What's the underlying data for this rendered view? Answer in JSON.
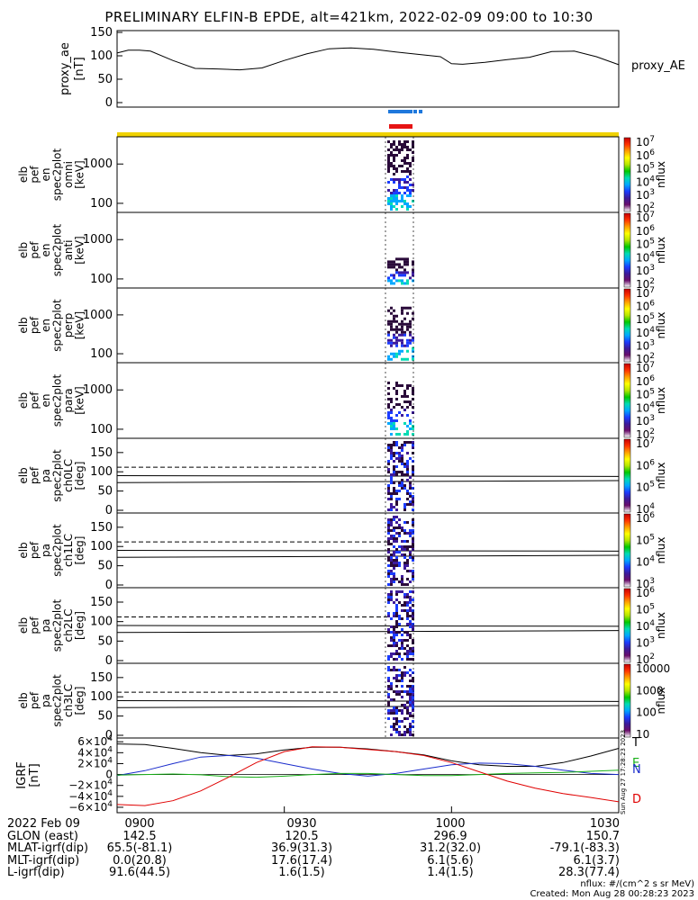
{
  "title": "PRELIMINARY ELFIN-B EPDE, alt=421km, 2022-02-09 09:00 to 10:30",
  "colors": {
    "line": "#000000",
    "bar_blue": "#1e78dc",
    "bar_red": "#e61414",
    "bar_yellow": "#f0d200",
    "B_red": "#e00000",
    "B_green": "#18b018",
    "B_blue": "#1a2ccc"
  },
  "panels": [
    {
      "id": "proxy_ae",
      "ylabel": [
        "proxy_ae",
        "[nT]"
      ],
      "right_label": "proxy_AE",
      "ticks": [
        "150",
        "100",
        "50",
        "0"
      ]
    },
    {
      "id": "omni",
      "ylabel": [
        "elb",
        "pef",
        "en",
        "spec2plot",
        "omni",
        "[keV]"
      ],
      "ticks": [
        "1000",
        "100"
      ],
      "cb_ticks": [
        "10^7",
        "10^6",
        "10^5",
        "10^4",
        "10^3",
        "10^2"
      ],
      "cb_label": "nflux"
    },
    {
      "id": "anti",
      "ylabel": [
        "elb",
        "pef",
        "en",
        "spec2plot",
        "anti",
        "[keV]"
      ],
      "ticks": [
        "1000",
        "100"
      ],
      "cb_ticks": [
        "10^7",
        "10^6",
        "10^5",
        "10^4",
        "10^3",
        "10^2"
      ],
      "cb_label": "nflux"
    },
    {
      "id": "perp",
      "ylabel": [
        "elb",
        "pef",
        "en",
        "spec2plot",
        "perp",
        "[keV]"
      ],
      "ticks": [
        "1000",
        "100"
      ],
      "cb_ticks": [
        "10^7",
        "10^6",
        "10^5",
        "10^4",
        "10^3",
        "10^2"
      ],
      "cb_label": "nflux"
    },
    {
      "id": "para",
      "ylabel": [
        "elb",
        "pef",
        "en",
        "spec2plot",
        "para",
        "[keV]"
      ],
      "ticks": [
        "1000",
        "100"
      ],
      "cb_ticks": [
        "10^7",
        "10^6",
        "10^5",
        "10^4",
        "10^3",
        "10^2"
      ],
      "cb_label": "nflux"
    },
    {
      "id": "ch0LC",
      "ylabel": [
        "elb",
        "pef",
        "pa",
        "spec2plot",
        "ch0LC",
        "[deg]"
      ],
      "ticks": [
        "150",
        "100",
        "50",
        "0"
      ],
      "cb_ticks": [
        "10^7",
        "10^6",
        "10^5",
        "10^4"
      ],
      "cb_label": "nflux"
    },
    {
      "id": "ch1LC",
      "ylabel": [
        "elb",
        "pef",
        "pa",
        "spec2plot",
        "ch1LC",
        "[deg]"
      ],
      "ticks": [
        "150",
        "100",
        "50",
        "0"
      ],
      "cb_ticks": [
        "10^6",
        "10^5",
        "10^4",
        "10^3"
      ],
      "cb_label": "nflux"
    },
    {
      "id": "ch2LC",
      "ylabel": [
        "elb",
        "pef",
        "pa",
        "spec2plot",
        "ch2LC",
        "[deg]"
      ],
      "ticks": [
        "150",
        "100",
        "50",
        "0"
      ],
      "cb_ticks": [
        "10^6",
        "10^5",
        "10^4",
        "10^3",
        "10^2"
      ],
      "cb_label": "nflux"
    },
    {
      "id": "ch3LC",
      "ylabel": [
        "elb",
        "pef",
        "pa",
        "spec2plot",
        "ch3LC",
        "[deg]"
      ],
      "ticks": [
        "150",
        "100",
        "50",
        "0"
      ],
      "cb_ticks": [
        "10000",
        "1000",
        "100",
        "10"
      ],
      "cb_label": "nflux"
    },
    {
      "id": "igrf",
      "ylabel": [
        "IGRF",
        "[nT]"
      ],
      "ticks": [
        "6×10^4",
        "4×10^4",
        "2×10^4",
        "0",
        "−2×10^4",
        "−4×10^4",
        "−6×10^4"
      ],
      "right_labels": [
        "T",
        "E",
        "N",
        "D"
      ],
      "stamp": "Sun Aug 27 17:28:23 2023"
    }
  ],
  "chart_data": [
    {
      "type": "line",
      "title": "proxy_ae",
      "ylabel": "proxy_ae [nT]",
      "ylim": [
        0,
        150
      ],
      "x_unit": "UT",
      "x": [
        "09:00",
        "09:02",
        "09:04",
        "09:06",
        "09:10",
        "09:14",
        "09:18",
        "09:22",
        "09:26",
        "09:30",
        "09:34",
        "09:38",
        "09:42",
        "09:46",
        "09:50",
        "09:54",
        "09:58",
        "10:00",
        "10:02",
        "10:06",
        "10:10",
        "10:14",
        "10:18",
        "10:22",
        "10:26",
        "10:30"
      ],
      "values": [
        106,
        112,
        112,
        110,
        90,
        73,
        72,
        70,
        74,
        90,
        104,
        115,
        117,
        114,
        108,
        103,
        98,
        83,
        82,
        86,
        92,
        97,
        109,
        110,
        98,
        81
      ]
    },
    {
      "type": "line",
      "title": "IGRF",
      "ylabel": "IGRF [nT]",
      "ylim": [
        -65000,
        62000
      ],
      "x": [
        "09:00",
        "09:05",
        "09:10",
        "09:15",
        "09:20",
        "09:25",
        "09:30",
        "09:35",
        "09:40",
        "09:45",
        "09:50",
        "09:55",
        "10:00",
        "10:05",
        "10:10",
        "10:15",
        "10:20",
        "10:25",
        "10:30"
      ],
      "series": [
        {
          "name": "T",
          "color": "#000000",
          "values": [
            56000,
            55000,
            48000,
            40000,
            35000,
            38000,
            45000,
            50000,
            50000,
            47000,
            42000,
            36000,
            25000,
            18000,
            15000,
            15000,
            22000,
            34000,
            48000
          ]
        },
        {
          "name": "N",
          "color": "#1a2ccc",
          "values": [
            -2000,
            7000,
            20000,
            32000,
            35000,
            30000,
            20000,
            10000,
            2000,
            -3000,
            2000,
            10000,
            18000,
            21000,
            20000,
            15000,
            8000,
            2000,
            0
          ]
        },
        {
          "name": "E",
          "color": "#18b018",
          "values": [
            -1000,
            0,
            1000,
            -500,
            -4000,
            -5000,
            -3000,
            0,
            2000,
            2000,
            0,
            -2000,
            -2000,
            0,
            2000,
            3000,
            4000,
            6000,
            8000
          ]
        },
        {
          "name": "D",
          "color": "#e00000",
          "values": [
            -55000,
            -57000,
            -48000,
            -30000,
            -5000,
            22000,
            42000,
            51000,
            50000,
            46000,
            42000,
            35000,
            22000,
            5000,
            -12000,
            -25000,
            -35000,
            -42000,
            -50000
          ]
        }
      ]
    }
  ],
  "footer": {
    "rows": [
      {
        "label": "2022 Feb 09",
        "cols": [
          "0900",
          "0930",
          "1000",
          "1030"
        ]
      },
      {
        "label": "GLON (east)",
        "cols": [
          "142.5",
          "120.5",
          "296.9",
          "150.7"
        ]
      },
      {
        "label": "MLAT-igrf(dip)",
        "cols": [
          "65.5(-81.1)",
          "36.9(31.3)",
          "31.2(32.0)",
          "-79.1(-83.3)"
        ]
      },
      {
        "label": "MLT-igrf(dip)",
        "cols": [
          "0.0(20.8)",
          "17.6(17.4)",
          "6.1(5.6)",
          "6.1(3.7)"
        ]
      },
      {
        "label": "L-igrf(dip)",
        "cols": [
          "91.6(44.5)",
          "1.6(1.5)",
          "1.4(1.5)",
          "28.3(77.4)"
        ]
      }
    ],
    "unit_note": "nflux: #/(cm^2 s sr MeV)",
    "created": "Created: Mon Aug 28 00:28:23 2023"
  }
}
